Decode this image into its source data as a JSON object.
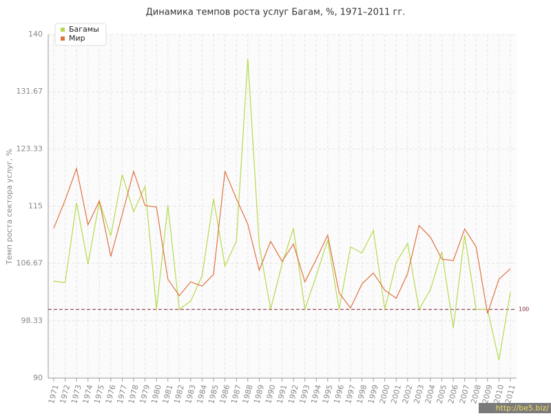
{
  "chart_data": {
    "type": "line",
    "title": "Динамика темпов роста услуг Багам, %, 1971–2011 гг.",
    "y_label": "Темп роста сектора услуг, %",
    "categories": [
      "1971",
      "1972",
      "1973",
      "1974",
      "1975",
      "1976",
      "1977",
      "1978",
      "1979",
      "1980",
      "1981",
      "1982",
      "1983",
      "1984",
      "1985",
      "1986",
      "1987",
      "1988",
      "1989",
      "1990",
      "1991",
      "1992",
      "1993",
      "1994",
      "1995",
      "1996",
      "1997",
      "1998",
      "1999",
      "2000",
      "2001",
      "2002",
      "2003",
      "2004",
      "2005",
      "2006",
      "2007",
      "2008",
      "2009",
      "2010",
      "2011"
    ],
    "series": [
      {
        "name": "Багамы",
        "color": "#b5d94a",
        "values": [
          104.1,
          103.9,
          115.5,
          106.6,
          115.7,
          110.7,
          119.6,
          114.2,
          117.9,
          100,
          115.1,
          100,
          101.2,
          104.9,
          116.1,
          106.3,
          109.9,
          136.5,
          109.4,
          100,
          106.6,
          111.8,
          100,
          104.9,
          110.1,
          100,
          109.1,
          108.2,
          111.5,
          100,
          106.8,
          109.6,
          100,
          102.9,
          108.4,
          97.3,
          110.8,
          100,
          100,
          92.6,
          102.5
        ]
      },
      {
        "name": "Мир",
        "color": "#e0703e",
        "values": [
          111.8,
          115.9,
          120.5,
          112.3,
          115.8,
          107.7,
          113.8,
          120.1,
          115.1,
          114.9,
          104.4,
          102.0,
          104.0,
          103.4,
          105.1,
          120.1,
          116.1,
          112.4,
          105.7,
          109.9,
          107.0,
          109.5,
          104.0,
          107.3,
          110.8,
          102.4,
          100.2,
          103.7,
          105.3,
          102.8,
          101.6,
          105.2,
          112.2,
          110.5,
          107.3,
          107.1,
          111.7,
          109.1,
          99.4,
          104.4,
          105.9
        ]
      }
    ],
    "ylim": [
      90,
      140
    ],
    "yticks": [
      90,
      98.33,
      106.67,
      115,
      123.33,
      131.67,
      140
    ],
    "hline": 100,
    "hline_color": "#7a1a2a",
    "grid": true,
    "legend": "top-left",
    "watermark": "http://be5.biz/"
  }
}
